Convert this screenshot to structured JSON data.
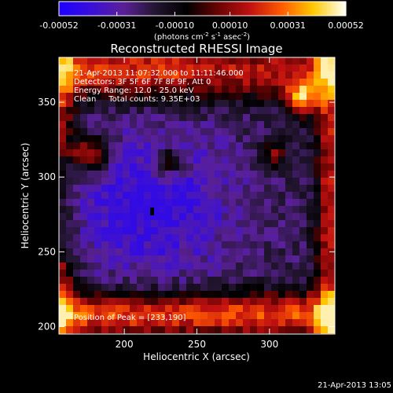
{
  "colorbar": {
    "ticks": [
      "-0.00052",
      "-0.00031",
      "-0.00010",
      "0.00010",
      "0.00031",
      "0.00052"
    ],
    "tick_values": [
      -0.00052,
      -0.00031,
      -0.0001,
      0.0001,
      0.00031,
      0.00052
    ],
    "range": [
      -0.00052,
      0.00052
    ],
    "units_main": "(photons cm",
    "units_exp1": "-2",
    "units_mid": " s",
    "units_exp2": "-1",
    "units_end": " asec",
    "units_exp3": "-2",
    "units_close": ")",
    "colormap": [
      "#1e00ff",
      "#3a0fd8",
      "#5a2098",
      "#241632",
      "#000000",
      "#6a0404",
      "#c01010",
      "#ff5a00",
      "#ffc800",
      "#fffff0"
    ]
  },
  "chart_data": {
    "type": "heatmap",
    "title": "Reconstructed RHESSI Image",
    "xlabel": "Heliocentric X (arcsec)",
    "ylabel": "Heliocentric Y (arcsec)",
    "xlim": [
      155,
      345
    ],
    "ylim": [
      195,
      380
    ],
    "xticks": [
      200,
      250,
      300
    ],
    "yticks": [
      200,
      250,
      300,
      350
    ],
    "grid": false,
    "peak": {
      "label": "Position of Peak = [233,190]",
      "x": 233,
      "y": 190
    }
  },
  "info": {
    "line1": "21-Apr-2013 11:07:32.000 to 11:11:46.000",
    "line2": "Detectors: 3F 5F 6F 7F 8F 9F, Att 0",
    "line3": "Energy Range: 12.0 - 25.0 keV",
    "line4": "Clean     Total counts: 9.35E+03"
  },
  "timestamp": "21-Apr-2013 13:05"
}
